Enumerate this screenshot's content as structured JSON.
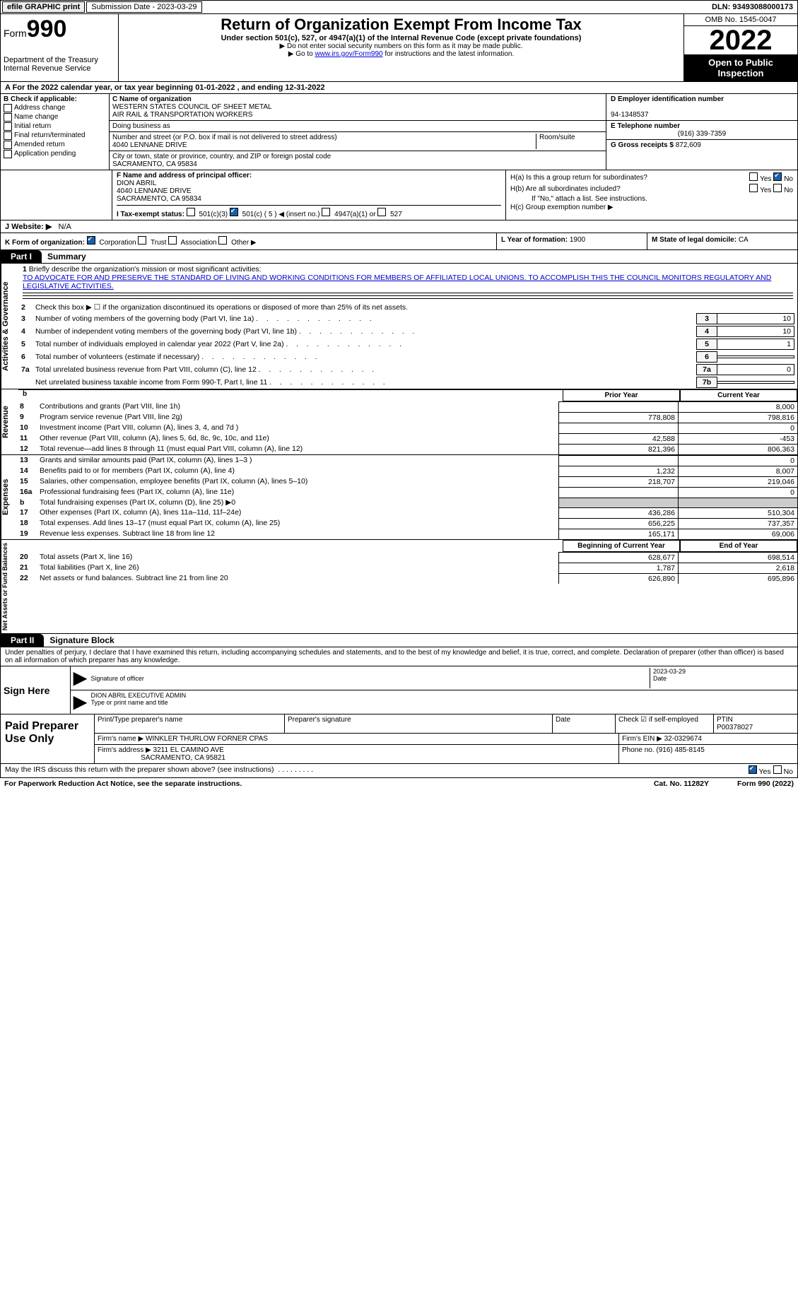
{
  "top": {
    "efile": "efile GRAPHIC print",
    "submission_label": "Submission Date - 2023-03-29",
    "dln": "DLN: 93493088000173"
  },
  "header": {
    "form_word": "Form",
    "form_num": "990",
    "dept": "Department of the Treasury",
    "irs": "Internal Revenue Service",
    "title": "Return of Organization Exempt From Income Tax",
    "sub": "Under section 501(c), 527, or 4947(a)(1) of the Internal Revenue Code (except private foundations)",
    "note1": "Do not enter social security numbers on this form as it may be made public.",
    "note2_pre": "Go to ",
    "note2_link": "www.irs.gov/Form990",
    "note2_post": " for instructions and the latest information.",
    "omb": "OMB No. 1545-0047",
    "year": "2022",
    "open_pub": "Open to Public Inspection"
  },
  "rowA": "A For the 2022 calendar year, or tax year beginning 01-01-2022    , and ending 12-31-2022",
  "B": {
    "hdr": "B Check if applicable:",
    "items": [
      "Address change",
      "Name change",
      "Initial return",
      "Final return/terminated",
      "Amended return",
      "Application pending"
    ]
  },
  "C": {
    "name_lbl": "C Name of organization",
    "name_line1": "WESTERN STATES COUNCIL OF SHEET METAL",
    "name_line2": "AIR RAIL & TRANSPORTATION WORKERS",
    "dba_lbl": "Doing business as",
    "addr_lbl": "Number and street (or P.O. box if mail is not delivered to street address)",
    "room_lbl": "Room/suite",
    "addr": "4040 LENNANE DRIVE",
    "city_lbl": "City or town, state or province, country, and ZIP or foreign postal code",
    "city": "SACRAMENTO, CA  95834"
  },
  "D": {
    "lbl": "D Employer identification number",
    "val": "94-1348537"
  },
  "E": {
    "lbl": "E Telephone number",
    "val": "(916) 339-7359"
  },
  "G": {
    "lbl": "G Gross receipts $",
    "val": "872,609"
  },
  "F": {
    "lbl": "F  Name and address of principal officer:",
    "l1": "DION ABRIL",
    "l2": "4040 LENNANE DRIVE",
    "l3": "SACRAMENTO, CA  95834"
  },
  "H": {
    "a": "H(a)  Is this a group return for subordinates?",
    "b": "H(b)  Are all subordinates included?",
    "bnote": "If \"No,\" attach a list. See instructions.",
    "c": "H(c)  Group exemption number ▶"
  },
  "I": {
    "lbl": "I    Tax-exempt status:",
    "o1": "501(c)(3)",
    "o2": "501(c) ( 5 ) ◀ (insert no.)",
    "o3": "4947(a)(1) or",
    "o4": "527"
  },
  "J": {
    "lbl": "J    Website: ▶",
    "val": "N/A"
  },
  "K": {
    "lbl": "K Form of organization:",
    "o1": "Corporation",
    "o2": "Trust",
    "o3": "Association",
    "o4": "Other ▶"
  },
  "L": {
    "lbl": "L Year of formation:",
    "val": "1900"
  },
  "M": {
    "lbl": "M State of legal domicile:",
    "val": "CA"
  },
  "part1": {
    "tab": "Part I",
    "title": "Summary",
    "l1": "Briefly describe the organization's mission or most significant activities:",
    "mission": "TO ADVOCATE FOR AND PRESERVE THE STANDARD OF LIVING AND WORKING CONDITIONS FOR MEMBERS OF AFFILIATED LOCAL UNIONS. TO ACCOMPLISH THIS THE COUNCIL MONITORS REGULATORY AND LEGISLATIVE ACTIVITIES.",
    "l2": "Check this box ▶ ☐ if the organization discontinued its operations or disposed of more than 25% of its net assets.",
    "lines": [
      {
        "n": "3",
        "d": "Number of voting members of the governing body (Part VI, line 1a)",
        "box": "3",
        "v": "10"
      },
      {
        "n": "4",
        "d": "Number of independent voting members of the governing body (Part VI, line 1b)",
        "box": "4",
        "v": "10"
      },
      {
        "n": "5",
        "d": "Total number of individuals employed in calendar year 2022 (Part V, line 2a)",
        "box": "5",
        "v": "1"
      },
      {
        "n": "6",
        "d": "Total number of volunteers (estimate if necessary)",
        "box": "6",
        "v": ""
      },
      {
        "n": "7a",
        "d": "Total unrelated business revenue from Part VIII, column (C), line 12",
        "box": "7a",
        "v": "0"
      },
      {
        "n": "",
        "d": "Net unrelated business taxable income from Form 990-T, Part I, line 11",
        "box": "7b",
        "v": ""
      }
    ]
  },
  "revenue": {
    "side": "Revenue",
    "hdr_prior": "Prior Year",
    "hdr_curr": "Current Year",
    "lines": [
      {
        "n": "8",
        "d": "Contributions and grants (Part VIII, line 1h)",
        "p": "",
        "c": "8,000"
      },
      {
        "n": "9",
        "d": "Program service revenue (Part VIII, line 2g)",
        "p": "778,808",
        "c": "798,816"
      },
      {
        "n": "10",
        "d": "Investment income (Part VIII, column (A), lines 3, 4, and 7d )",
        "p": "",
        "c": "0"
      },
      {
        "n": "11",
        "d": "Other revenue (Part VIII, column (A), lines 5, 6d, 8c, 9c, 10c, and 11e)",
        "p": "42,588",
        "c": "-453"
      },
      {
        "n": "12",
        "d": "Total revenue—add lines 8 through 11 (must equal Part VIII, column (A), line 12)",
        "p": "821,396",
        "c": "806,363"
      }
    ]
  },
  "expenses": {
    "side": "Expenses",
    "lines": [
      {
        "n": "13",
        "d": "Grants and similar amounts paid (Part IX, column (A), lines 1–3 )",
        "p": "",
        "c": "0"
      },
      {
        "n": "14",
        "d": "Benefits paid to or for members (Part IX, column (A), line 4)",
        "p": "1,232",
        "c": "8,007"
      },
      {
        "n": "15",
        "d": "Salaries, other compensation, employee benefits (Part IX, column (A), lines 5–10)",
        "p": "218,707",
        "c": "219,046"
      },
      {
        "n": "16a",
        "d": "Professional fundraising fees (Part IX, column (A), line 11e)",
        "p": "",
        "c": "0"
      },
      {
        "n": "b",
        "d": "Total fundraising expenses (Part IX, column (D), line 25) ▶0",
        "p": "grey",
        "c": "grey"
      },
      {
        "n": "17",
        "d": "Other expenses (Part IX, column (A), lines 11a–11d, 11f–24e)",
        "p": "436,286",
        "c": "510,304"
      },
      {
        "n": "18",
        "d": "Total expenses. Add lines 13–17 (must equal Part IX, column (A), line 25)",
        "p": "656,225",
        "c": "737,357"
      },
      {
        "n": "19",
        "d": "Revenue less expenses. Subtract line 18 from line 12",
        "p": "165,171",
        "c": "69,006"
      }
    ]
  },
  "netassets": {
    "side": "Net Assets or Fund Balances",
    "hdr_beg": "Beginning of Current Year",
    "hdr_end": "End of Year",
    "lines": [
      {
        "n": "20",
        "d": "Total assets (Part X, line 16)",
        "p": "628,677",
        "c": "698,514"
      },
      {
        "n": "21",
        "d": "Total liabilities (Part X, line 26)",
        "p": "1,787",
        "c": "2,618"
      },
      {
        "n": "22",
        "d": "Net assets or fund balances. Subtract line 21 from line 20",
        "p": "626,890",
        "c": "695,896"
      }
    ]
  },
  "part2": {
    "tab": "Part II",
    "title": "Signature Block",
    "penalty": "Under penalties of perjury, I declare that I have examined this return, including accompanying schedules and statements, and to the best of my knowledge and belief, it is true, correct, and complete. Declaration of preparer (other than officer) is based on all information of which preparer has any knowledge.",
    "sign_here": "Sign Here",
    "sig_officer": "Signature of officer",
    "sig_date": "2023-03-29",
    "date_lbl": "Date",
    "sig_name": "DION ABRIL  EXECUTIVE ADMIN",
    "type_name": "Type or print name and title",
    "paid": "Paid Preparer Use Only",
    "prep_name_lbl": "Print/Type preparer's name",
    "prep_sig_lbl": "Preparer's signature",
    "prep_date_lbl": "Date",
    "prep_check": "Check ☑ if self-employed",
    "ptin_lbl": "PTIN",
    "ptin": "P00378027",
    "firm_name_lbl": "Firm's name    ▶",
    "firm_name": "WINKLER THURLOW FORNER CPAS",
    "firm_ein_lbl": "Firm's EIN ▶",
    "firm_ein": "32-0329674",
    "firm_addr_lbl": "Firm's address ▶",
    "firm_addr1": "3211 EL CAMINO AVE",
    "firm_addr2": "SACRAMENTO, CA  95821",
    "phone_lbl": "Phone no.",
    "phone": "(916) 485-8145"
  },
  "footer": {
    "discuss": "May the IRS discuss this return with the preparer shown above? (see instructions)",
    "pra": "For Paperwork Reduction Act Notice, see the separate instructions.",
    "cat": "Cat. No. 11282Y",
    "form": "Form 990 (2022)"
  },
  "side_act": "Activities & Governance"
}
